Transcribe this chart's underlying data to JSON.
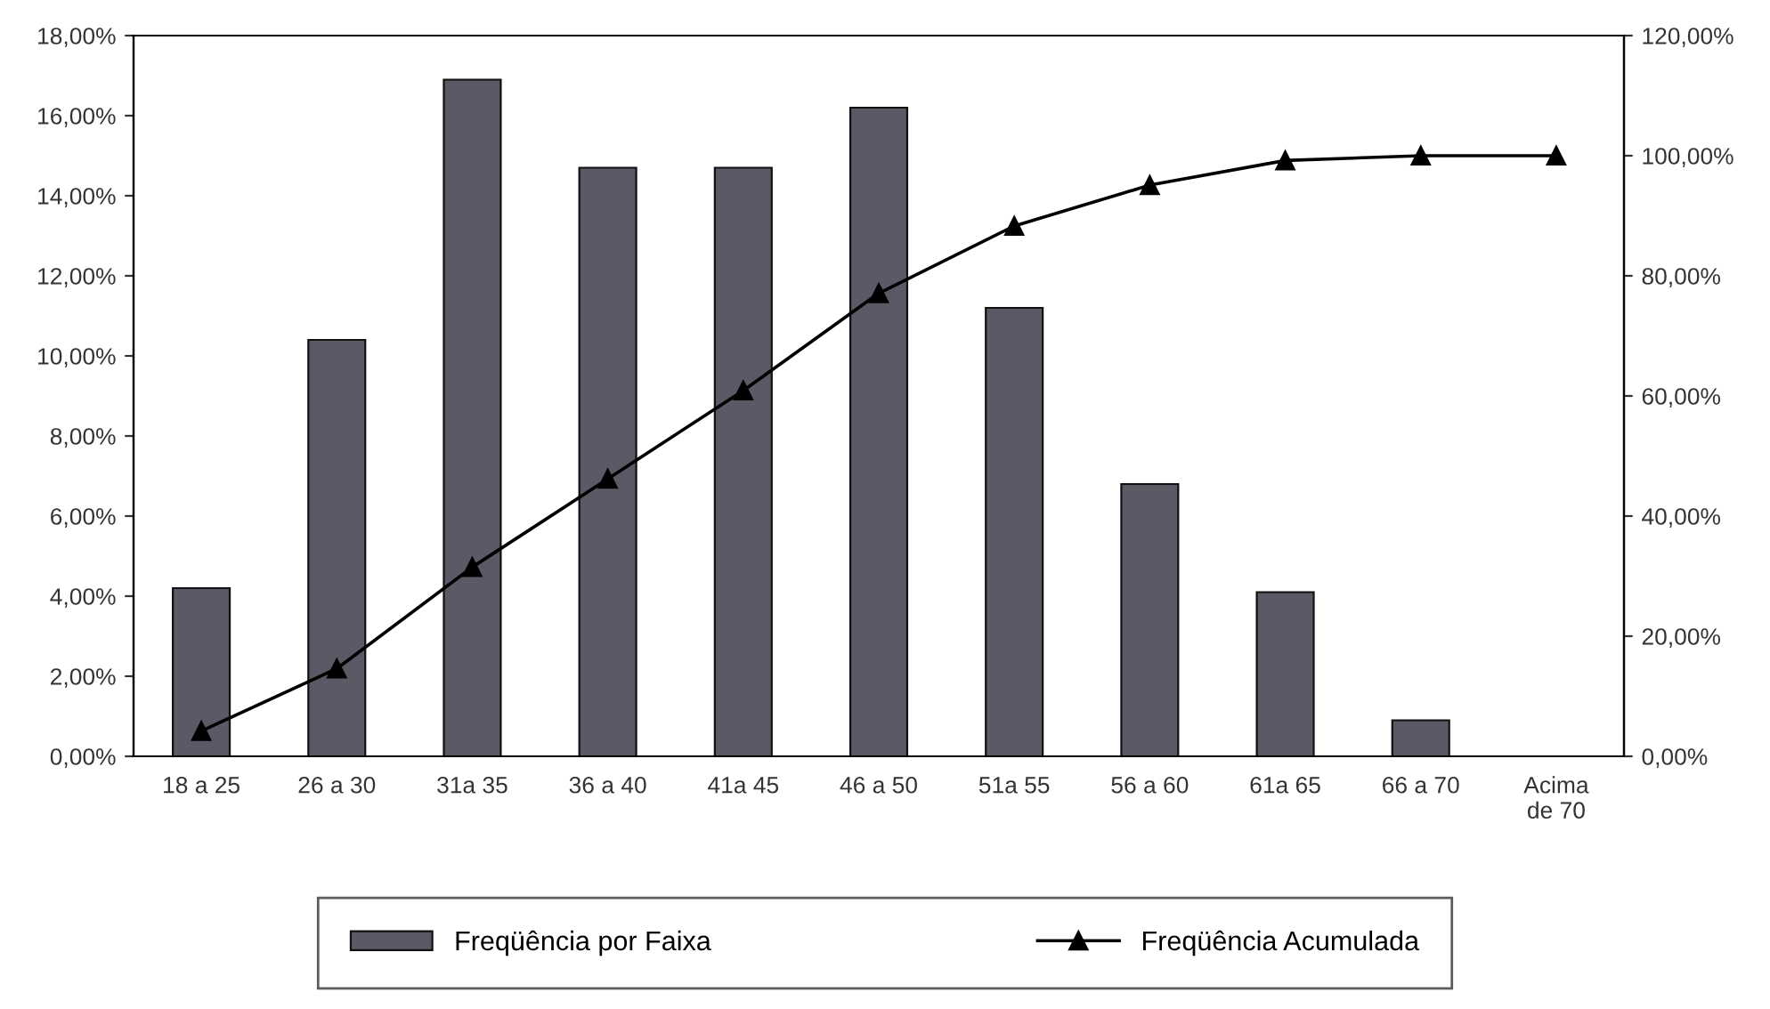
{
  "chart_data": {
    "type": "bar",
    "categories": [
      "18 a 25",
      "26 a 30",
      "31a 35",
      "36 a 40",
      "41a 45",
      "46 a 50",
      "51a 55",
      "56 a 60",
      "61a 65",
      "66 a 70",
      "Acima\nde 70"
    ],
    "series": [
      {
        "name": "Freqüência por Faixa",
        "color": "#5a5a66",
        "values": [
          4.2,
          10.4,
          16.9,
          14.7,
          14.7,
          16.2,
          11.2,
          6.8,
          4.1,
          0.9,
          null
        ]
      },
      {
        "name": "Freqüência Acumulada",
        "type": "line",
        "axis": "y2",
        "color": "#000000",
        "values": [
          4.2,
          14.6,
          31.5,
          46.2,
          60.9,
          77.1,
          88.3,
          95.1,
          99.2,
          100,
          100
        ]
      }
    ],
    "ylim": [
      0,
      18
    ],
    "yticks": [
      {
        "value": 0,
        "label": "0,00%"
      },
      {
        "value": 2,
        "label": "2,00%"
      },
      {
        "value": 4,
        "label": "4,00%"
      },
      {
        "value": 6,
        "label": "6,00%"
      },
      {
        "value": 8,
        "label": "8,00%"
      },
      {
        "value": 10,
        "label": "10,00%"
      },
      {
        "value": 12,
        "label": "12,00%"
      },
      {
        "value": 14,
        "label": "14,00%"
      },
      {
        "value": 16,
        "label": "16,00%"
      },
      {
        "value": 18,
        "label": "18,00%"
      }
    ],
    "y2lim": [
      0,
      120
    ],
    "y2ticks": [
      {
        "value": 0,
        "label": "0,00%"
      },
      {
        "value": 20,
        "label": "20,00%"
      },
      {
        "value": 40,
        "label": "40,00%"
      },
      {
        "value": 60,
        "label": "60,00%"
      },
      {
        "value": 80,
        "label": "80,00%"
      },
      {
        "value": 100,
        "label": "100,00%"
      },
      {
        "value": 120,
        "label": "120,00%"
      }
    ],
    "marker": "triangle",
    "line_style": "solid",
    "legend": "bottom",
    "grid": false
  }
}
